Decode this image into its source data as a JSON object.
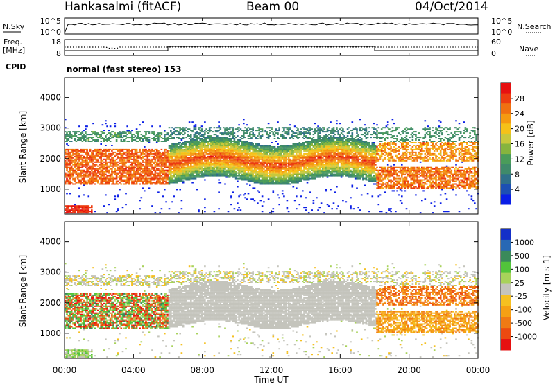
{
  "header": {
    "station": "Hankasalmi (fitACF)",
    "beam": "Beam 00",
    "date": "04/Oct/2014"
  },
  "summary": {
    "nsky_label": "N.Sky",
    "nsky_top": "10^5",
    "nsky_bottom": "10^0",
    "nsearch_label": "N.Search",
    "nsearch_top": "10^5",
    "nsearch_bottom": "10^0",
    "freq_label_line1": "Freq.",
    "freq_label_line2": "[MHz]",
    "freq_top": "18",
    "freq_bottom": "8",
    "nave_label": "Nave",
    "nave_top": "60",
    "nave_bottom": "0",
    "cpid_label": "CPID",
    "cpid_text": "normal (fast stereo) 153"
  },
  "chart_data": [
    {
      "type": "heatmap",
      "quantity": "Power",
      "ylabel": "Slant Range [km]",
      "yticks": [
        "1000",
        "2000",
        "3000",
        "4000"
      ],
      "ylim": [
        180,
        4650
      ],
      "xlim_hours": [
        0,
        24
      ],
      "colorbar": {
        "label": "Power [dB]",
        "ticks": [
          "4",
          "8",
          "12",
          "16",
          "20",
          "24",
          "28"
        ],
        "range": [
          0,
          32
        ],
        "colors": [
          "#0a1ee6",
          "#1d4fb3",
          "#2f6f8a",
          "#3f8a6a",
          "#4a9c5a",
          "#86b43e",
          "#c8c83c",
          "#f5c118",
          "#f59a10",
          "#f07010",
          "#ec3c10",
          "#e61010"
        ]
      },
      "grid": false
    },
    {
      "type": "heatmap",
      "quantity": "Velocity",
      "ylabel": "Slant Range [km]",
      "yticks": [
        "1000",
        "2000",
        "3000",
        "4000"
      ],
      "ylim": [
        180,
        4650
      ],
      "xlim_hours": [
        0,
        24
      ],
      "colorbar": {
        "label": "Velocity [m s-1]",
        "ticks": [
          "1000",
          "500",
          "100",
          "25",
          "-25",
          "-100",
          "-500",
          "-1000"
        ],
        "colors": [
          "#1530c8",
          "#2868b4",
          "#3a8a5a",
          "#52c43a",
          "#a8d25a",
          "#c4c4bc",
          "#f5c020",
          "#f5a014",
          "#f07a14",
          "#ec4a10",
          "#e61010"
        ]
      },
      "grid": false
    }
  ],
  "xaxis": {
    "label": "Time UT",
    "ticks": [
      "00:00",
      "04:00",
      "08:00",
      "12:00",
      "16:00",
      "20:00",
      "00:00"
    ]
  }
}
